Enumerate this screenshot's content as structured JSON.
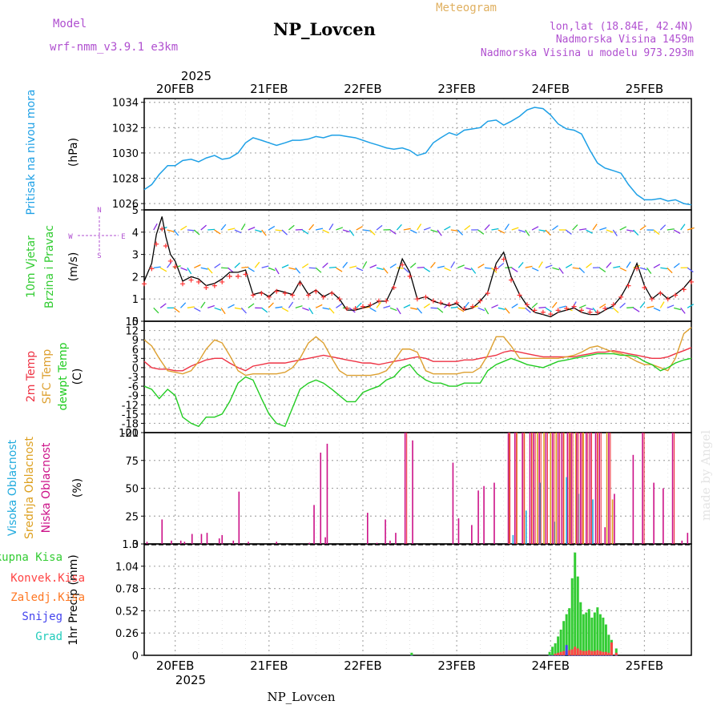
{
  "header": {
    "model_label": "Model",
    "model_name": "wrf-nmm_v3.9.1  e3km",
    "station": "NP_Lovcen",
    "meteogram": "Meteogram",
    "lonlat": "lon,lat (18.84E, 42.4N)",
    "elevation": "Nadmorska Visina 1459m",
    "model_elevation": "Nadmorska Visina u modelu 973.293m",
    "footer_station": "NP_Lovcen",
    "watermark": "made by Angel",
    "year_top": "2025",
    "year_bottom": "2025"
  },
  "colors": {
    "pressure": "#1ea0e6",
    "wind_speed": "#000000",
    "wind_cross": "#ff3333",
    "temp2m": "#ee3344",
    "sfc_temp": "#dda030",
    "dewpoint": "#22cc22",
    "high_cloud": "#20aadd",
    "mid_cloud": "#dda020",
    "low_cloud": "#cc1188",
    "total_precip": "#33cc33",
    "conv_precip": "#ff4444",
    "frz_precip": "#ff7722",
    "snow": "#4444ee",
    "hail": "#22ccbb",
    "label_purple": "#b050d0",
    "label_orange": "#e0b060"
  },
  "chart_data": [
    {
      "type": "line",
      "panel": "pressure",
      "ylabel_1": "Pritisak na nivou mora",
      "ylabel_2": "(hPa)",
      "ylim": [
        1025.5,
        1034.3
      ],
      "yticks": [
        1026,
        1028,
        1030,
        1032,
        1034
      ],
      "xlim": [
        -0.33,
        5.5
      ],
      "x_tick_days": [
        "20FEB",
        "21FEB",
        "22FEB",
        "23FEB",
        "24FEB",
        "25FEB"
      ],
      "x": [
        -0.33,
        -0.25,
        -0.17,
        -0.08,
        0.0,
        0.08,
        0.17,
        0.25,
        0.33,
        0.42,
        0.5,
        0.58,
        0.67,
        0.75,
        0.83,
        0.92,
        1.0,
        1.08,
        1.17,
        1.25,
        1.33,
        1.42,
        1.5,
        1.58,
        1.67,
        1.75,
        1.83,
        1.92,
        2.0,
        2.08,
        2.17,
        2.25,
        2.33,
        2.42,
        2.5,
        2.58,
        2.67,
        2.75,
        2.83,
        2.92,
        3.0,
        3.08,
        3.17,
        3.25,
        3.33,
        3.42,
        3.5,
        3.58,
        3.67,
        3.75,
        3.83,
        3.92,
        4.0,
        4.08,
        4.17,
        4.25,
        4.33,
        4.42,
        4.5,
        4.58,
        4.67,
        4.75,
        4.83,
        4.92,
        5.0,
        5.08,
        5.17,
        5.25,
        5.33,
        5.42,
        5.5
      ],
      "values": [
        1027.1,
        1027.5,
        1028.3,
        1029.0,
        1029.0,
        1029.4,
        1029.5,
        1029.3,
        1029.6,
        1029.8,
        1029.5,
        1029.6,
        1030.0,
        1030.8,
        1031.2,
        1031.0,
        1030.8,
        1030.6,
        1030.8,
        1031.0,
        1031.0,
        1031.1,
        1031.3,
        1031.2,
        1031.4,
        1031.4,
        1031.3,
        1031.2,
        1031.0,
        1030.8,
        1030.6,
        1030.4,
        1030.3,
        1030.4,
        1030.2,
        1029.8,
        1030.0,
        1030.8,
        1031.2,
        1031.6,
        1031.4,
        1031.8,
        1031.9,
        1032.0,
        1032.5,
        1032.6,
        1032.2,
        1032.5,
        1032.9,
        1033.4,
        1033.6,
        1033.5,
        1033.0,
        1032.3,
        1031.9,
        1031.8,
        1031.5,
        1030.2,
        1029.2,
        1028.8,
        1028.6,
        1028.4,
        1027.5,
        1026.7,
        1026.3,
        1026.3,
        1026.4,
        1026.2,
        1026.3,
        1026.0,
        1025.9
      ]
    },
    {
      "type": "line",
      "panel": "wind",
      "ylabel_1": "10m Vjetar",
      "ylabel_2": "Brzina i Pravac",
      "ylabel_3": "(m/s)",
      "compass_n": "N",
      "compass_s": "S",
      "compass_w": "W",
      "compass_e": "E",
      "ylim": [
        0,
        5
      ],
      "yticks": [
        0,
        1,
        2,
        3,
        4,
        5
      ],
      "x": [
        -0.33,
        -0.25,
        -0.2,
        -0.14,
        -0.1,
        -0.05,
        0.0,
        0.08,
        0.17,
        0.25,
        0.33,
        0.42,
        0.5,
        0.58,
        0.67,
        0.75,
        0.83,
        0.92,
        1.0,
        1.08,
        1.17,
        1.25,
        1.33,
        1.42,
        1.5,
        1.58,
        1.67,
        1.75,
        1.83,
        1.92,
        2.0,
        2.08,
        2.17,
        2.25,
        2.33,
        2.42,
        2.5,
        2.58,
        2.67,
        2.75,
        2.83,
        2.92,
        3.0,
        3.08,
        3.17,
        3.25,
        3.33,
        3.42,
        3.5,
        3.58,
        3.67,
        3.75,
        3.83,
        3.92,
        4.0,
        4.08,
        4.17,
        4.25,
        4.33,
        4.42,
        4.5,
        4.58,
        4.67,
        4.75,
        4.83,
        4.92,
        5.0,
        5.08,
        5.17,
        5.25,
        5.33,
        5.42,
        5.5
      ],
      "values": [
        1.8,
        2.6,
        3.9,
        4.7,
        3.8,
        3.0,
        2.7,
        1.8,
        2.0,
        1.9,
        1.6,
        1.7,
        1.9,
        2.2,
        2.2,
        2.3,
        1.2,
        1.3,
        1.1,
        1.4,
        1.3,
        1.2,
        1.8,
        1.2,
        1.4,
        1.1,
        1.3,
        1.0,
        0.5,
        0.5,
        0.6,
        0.7,
        0.9,
        0.9,
        1.6,
        2.8,
        2.2,
        1.0,
        1.1,
        0.9,
        0.8,
        0.7,
        0.8,
        0.5,
        0.6,
        0.9,
        1.3,
        2.6,
        3.1,
        2.0,
        1.2,
        0.7,
        0.4,
        0.3,
        0.2,
        0.4,
        0.5,
        0.6,
        0.4,
        0.3,
        0.3,
        0.5,
        0.7,
        1.1,
        1.7,
        2.6,
        1.6,
        1.0,
        1.3,
        1.0,
        1.2,
        1.5,
        1.9
      ]
    },
    {
      "type": "line",
      "panel": "temperature",
      "ylabel_1": "2m Temp",
      "ylabel_2": "SFC Temp",
      "ylabel_3": "dewpt Temp",
      "ylabel_4": "(C)",
      "ylim": [
        -21,
        15
      ],
      "yticks": [
        -21,
        -18,
        -15,
        -12,
        -9,
        -6,
        -3,
        0,
        3,
        6,
        9,
        12,
        15
      ],
      "x": [
        -0.33,
        -0.25,
        -0.17,
        -0.08,
        0.0,
        0.08,
        0.17,
        0.25,
        0.33,
        0.42,
        0.5,
        0.58,
        0.67,
        0.75,
        0.83,
        0.92,
        1.0,
        1.08,
        1.17,
        1.25,
        1.33,
        1.42,
        1.5,
        1.58,
        1.67,
        1.75,
        1.83,
        1.92,
        2.0,
        2.08,
        2.17,
        2.25,
        2.33,
        2.42,
        2.5,
        2.58,
        2.67,
        2.75,
        2.83,
        2.92,
        3.0,
        3.08,
        3.17,
        3.25,
        3.33,
        3.42,
        3.5,
        3.58,
        3.67,
        3.75,
        3.83,
        3.92,
        4.0,
        4.08,
        4.17,
        4.25,
        4.33,
        4.42,
        4.5,
        4.58,
        4.67,
        4.75,
        4.83,
        4.92,
        5.0,
        5.08,
        5.17,
        5.25,
        5.33,
        5.42,
        5.5
      ],
      "series": [
        {
          "name": "2m Temp",
          "values": [
            2.0,
            0.0,
            -0.5,
            -0.5,
            -1.0,
            -1.0,
            0.5,
            1.5,
            2.5,
            3.0,
            3.0,
            1.5,
            0.0,
            -1.0,
            0.5,
            1.0,
            1.5,
            1.5,
            1.5,
            2.0,
            2.5,
            3.0,
            3.5,
            4.0,
            3.5,
            3.0,
            2.5,
            2.0,
            1.5,
            1.5,
            1.0,
            1.5,
            2.0,
            2.5,
            3.0,
            3.5,
            3.0,
            2.0,
            2.0,
            2.0,
            2.0,
            2.5,
            2.5,
            3.0,
            3.5,
            4.0,
            5.0,
            5.5,
            5.0,
            4.5,
            4.0,
            3.5,
            3.5,
            3.5,
            3.5,
            3.5,
            4.0,
            4.5,
            5.0,
            5.0,
            5.5,
            5.0,
            4.5,
            4.0,
            3.5,
            3.0,
            3.0,
            3.5,
            4.5,
            5.5,
            6.5
          ]
        },
        {
          "name": "SFC Temp",
          "values": [
            9.0,
            7.0,
            3.0,
            -1.0,
            -1.5,
            -2.0,
            -1.0,
            2.0,
            6.0,
            9.0,
            8.0,
            4.0,
            -1.0,
            -2.5,
            -2.0,
            -2.0,
            -2.0,
            -2.0,
            -1.5,
            0.0,
            3.0,
            8.0,
            10.0,
            8.0,
            3.0,
            -1.0,
            -2.5,
            -2.5,
            -2.5,
            -2.5,
            -2.0,
            -1.0,
            2.0,
            6.0,
            6.0,
            5.0,
            -1.0,
            -2.0,
            -2.0,
            -2.0,
            -2.0,
            -1.5,
            -1.5,
            0.0,
            4.0,
            10.0,
            10.0,
            7.0,
            3.0,
            3.0,
            3.0,
            3.0,
            3.0,
            3.0,
            3.5,
            4.0,
            5.0,
            6.5,
            7.0,
            6.0,
            5.0,
            4.5,
            3.5,
            2.0,
            1.0,
            1.0,
            0.0,
            -1.0,
            3.0,
            11.0,
            13.0
          ]
        },
        {
          "name": "dewpt Temp",
          "values": [
            -6.0,
            -7.0,
            -10.0,
            -7.0,
            -9.0,
            -16.0,
            -18.0,
            -19.0,
            -16.0,
            -16.0,
            -15.0,
            -11.0,
            -5.0,
            -3.0,
            -4.0,
            -10.0,
            -15.0,
            -18.0,
            -19.0,
            -13.0,
            -7.0,
            -5.0,
            -4.0,
            -5.0,
            -7.0,
            -9.0,
            -11.0,
            -11.0,
            -8.0,
            -7.0,
            -6.0,
            -4.0,
            -3.0,
            0.0,
            1.0,
            -2.0,
            -4.0,
            -5.0,
            -5.0,
            -6.0,
            -6.0,
            -5.0,
            -5.0,
            -5.0,
            -1.0,
            1.0,
            2.0,
            3.0,
            2.0,
            1.0,
            0.5,
            0.0,
            1.0,
            2.0,
            2.5,
            3.0,
            3.5,
            4.0,
            4.5,
            4.5,
            4.5,
            4.0,
            4.0,
            3.5,
            2.0,
            1.0,
            -1.0,
            0.0,
            1.5,
            2.5,
            3.0
          ]
        }
      ]
    },
    {
      "type": "bar",
      "panel": "clouds",
      "ylabel_1": "Visoka Oblacnost",
      "ylabel_2": "Srednja Oblacnost",
      "ylabel_3": "Niska Oblacnost",
      "ylabel_4": "(%)",
      "ylim": [
        0,
        100
      ],
      "yticks": [
        0,
        25,
        50,
        75,
        100
      ],
      "low_x": [
        -0.3,
        -0.14,
        -0.04,
        0.06,
        0.1,
        0.18,
        0.28,
        0.34,
        0.47,
        0.5,
        0.62,
        0.68,
        0.78,
        1.08,
        1.43,
        1.48,
        1.55,
        1.6,
        1.62,
        2.05,
        2.15,
        2.24,
        2.29,
        2.35,
        2.45,
        2.53,
        2.96,
        3.02,
        3.16,
        3.23,
        3.29,
        3.4,
        3.55,
        3.62,
        3.7,
        3.78,
        3.82,
        3.88,
        3.95,
        4.02,
        4.08,
        4.12,
        4.18,
        4.22,
        4.28,
        4.32,
        4.38,
        4.42,
        4.48,
        4.52,
        4.58,
        4.62,
        4.68,
        4.88,
        4.98,
        5.1,
        5.2,
        5.3,
        5.4,
        5.46
      ],
      "low_values": [
        2,
        22,
        3,
        3,
        2,
        9,
        9,
        10,
        5,
        8,
        3,
        47,
        2,
        2,
        1,
        35,
        82,
        6,
        90,
        28,
        1,
        22,
        3,
        10,
        100,
        93,
        73,
        23,
        17,
        48,
        52,
        55,
        100,
        100,
        100,
        100,
        100,
        100,
        100,
        100,
        100,
        100,
        100,
        100,
        100,
        100,
        100,
        100,
        100,
        100,
        15,
        100,
        45,
        80,
        100,
        55,
        50,
        100,
        3,
        10
      ],
      "mid_x": [
        3.56,
        3.64,
        3.72,
        3.8,
        3.86,
        3.93,
        4.0,
        4.06,
        4.14,
        4.21,
        4.27,
        4.35,
        4.42,
        4.5,
        4.6,
        4.66
      ],
      "mid_values": [
        100,
        100,
        100,
        100,
        100,
        100,
        100,
        100,
        100,
        100,
        100,
        100,
        100,
        100,
        100,
        40
      ],
      "high_x": [
        3.6,
        3.74,
        3.89,
        4.04,
        4.17,
        4.3,
        4.45
      ],
      "high_values": [
        8,
        30,
        55,
        20,
        60,
        45,
        40
      ]
    },
    {
      "type": "bar",
      "panel": "precipitation",
      "legend_total": "Ukupna Kisa",
      "legend_conv": "Konvek.Kisa",
      "legend_frz": "Zaledj.Kisa",
      "legend_snow": "Snijeg",
      "legend_hail": "Grad",
      "ylabel": "1hr Precip (mm)",
      "ylim": [
        0,
        1.3
      ],
      "yticks": [
        0,
        0.26,
        0.52,
        0.78,
        1.04,
        1.3
      ],
      "ytick_labels": [
        "0",
        "0.26",
        "0.52",
        "0.78",
        "1.04",
        "1.3"
      ],
      "x": [
        2.52,
        3.99,
        4.02,
        4.05,
        4.08,
        4.11,
        4.14,
        4.17,
        4.2,
        4.23,
        4.26,
        4.29,
        4.32,
        4.35,
        4.38,
        4.41,
        4.44,
        4.47,
        4.5,
        4.53,
        4.56,
        4.59,
        4.62,
        4.65,
        4.7
      ],
      "total": [
        0.03,
        0.04,
        0.1,
        0.14,
        0.22,
        0.3,
        0.4,
        0.48,
        0.55,
        0.9,
        1.2,
        0.92,
        0.62,
        0.48,
        0.5,
        0.54,
        0.44,
        0.5,
        0.56,
        0.48,
        0.44,
        0.36,
        0.24,
        0.18,
        0.08
      ],
      "convective": [
        0.0,
        0.0,
        0.0,
        0.02,
        0.03,
        0.04,
        0.05,
        0.05,
        0.06,
        0.07,
        0.1,
        0.08,
        0.06,
        0.05,
        0.05,
        0.06,
        0.05,
        0.05,
        0.06,
        0.05,
        0.04,
        0.04,
        0.03,
        0.15,
        0.03
      ],
      "snow": [
        0.0,
        0.0,
        0.0,
        0.0,
        0.0,
        0.0,
        0.0,
        0.12,
        0.0,
        0.0,
        0.0,
        0.0,
        0.0,
        0.0,
        0.0,
        0.0,
        0.0,
        0.0,
        0.0,
        0.0,
        0.0,
        0.0,
        0.0,
        0.0,
        0.0
      ]
    }
  ]
}
